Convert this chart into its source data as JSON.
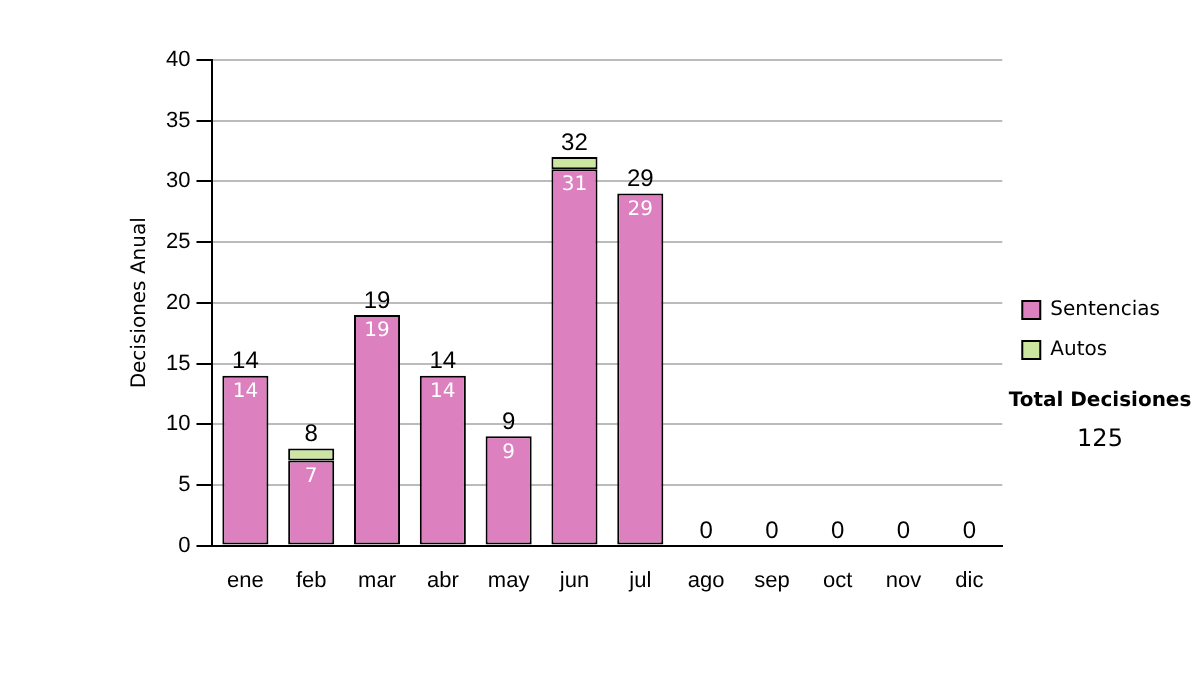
{
  "chart_data": {
    "type": "bar",
    "stacked": true,
    "ylabel": "Decisiones Anual",
    "categories": [
      "ene",
      "feb",
      "mar",
      "abr",
      "may",
      "jun",
      "jul",
      "ago",
      "sep",
      "oct",
      "nov",
      "dic"
    ],
    "series": [
      {
        "name": "Sentencias",
        "color": "#dd80c0",
        "values": [
          14,
          7,
          19,
          14,
          9,
          31,
          29,
          0,
          0,
          0,
          0,
          0
        ],
        "value_labels": [
          "14",
          "7",
          "19",
          "14",
          "9",
          "31",
          "29",
          null,
          null,
          null,
          null,
          null
        ]
      },
      {
        "name": "Autos",
        "color": "#cce5a0",
        "values": [
          0,
          1,
          0,
          0,
          0,
          1,
          0,
          0,
          0,
          0,
          0,
          0
        ]
      }
    ],
    "totals": [
      "14",
      "8",
      "19",
      "14",
      "9",
      "32",
      "29",
      "0",
      "0",
      "0",
      "0",
      "0"
    ],
    "ylim": [
      0,
      40
    ],
    "yticks": [
      0,
      5,
      10,
      15,
      20,
      25,
      30,
      35,
      40
    ],
    "grid": "y",
    "legend": "right",
    "annotations": [
      "Total Decisiones",
      "125"
    ]
  }
}
